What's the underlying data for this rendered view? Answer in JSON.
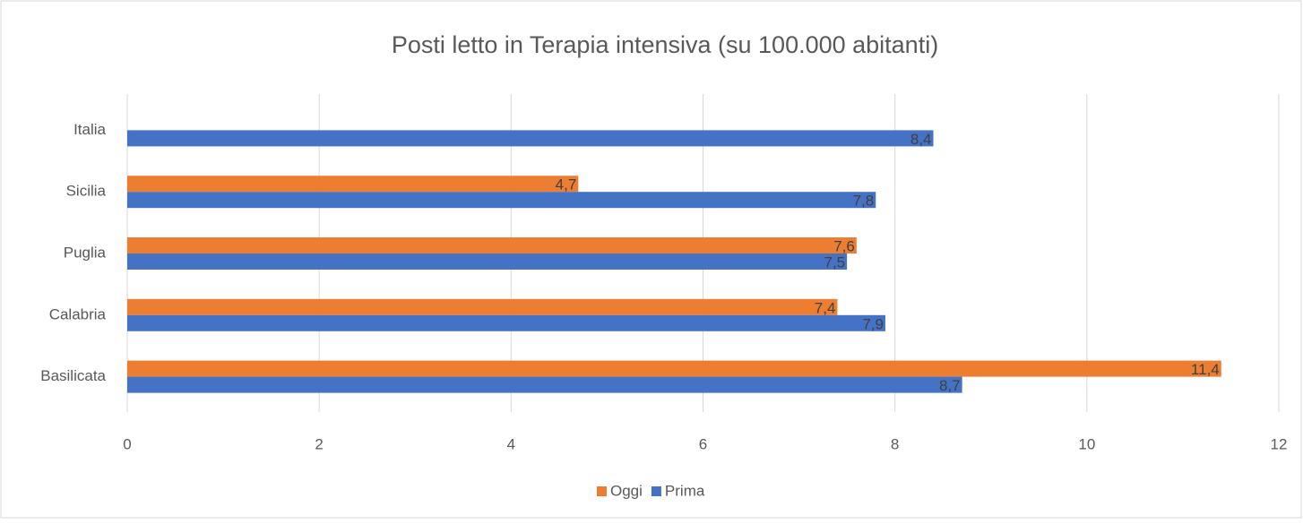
{
  "chart_data": {
    "type": "bar",
    "orientation": "horizontal",
    "title": "Posti letto in Terapia intensiva (su 100.000 abitanti)",
    "categories": [
      "Italia",
      "Sicilia",
      "Puglia",
      "Calabria",
      "Basilicata"
    ],
    "series": [
      {
        "name": "Oggi",
        "color": "#ed7d31",
        "values": [
          null,
          4.7,
          7.6,
          7.4,
          11.4
        ],
        "value_labels": [
          null,
          "4,7",
          "7,6",
          "7,4",
          "11,4"
        ]
      },
      {
        "name": "Prima",
        "color": "#4472c4",
        "values": [
          8.4,
          7.8,
          7.5,
          7.9,
          8.7
        ],
        "value_labels": [
          "8,4",
          "7,8",
          "7,5",
          "7,9",
          "8,7"
        ]
      }
    ],
    "xlim": [
      0,
      12
    ],
    "xticks": [
      0,
      2,
      4,
      6,
      8,
      10,
      12
    ],
    "grid": true,
    "legend": "bottom"
  }
}
